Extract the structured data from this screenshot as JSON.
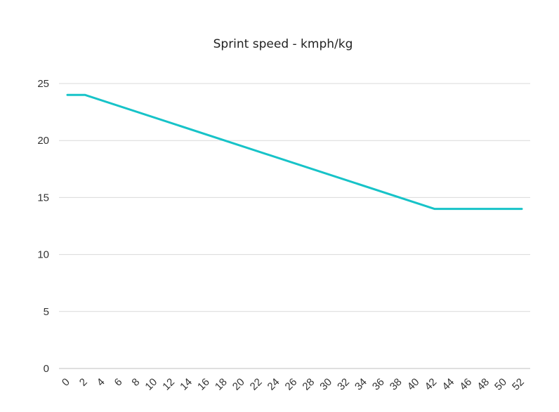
{
  "chart_data": {
    "type": "line",
    "title": "Sprint speed - kmph/kg",
    "xlabel": "",
    "ylabel": "",
    "x": [
      0,
      1,
      2,
      3,
      4,
      5,
      6,
      7,
      8,
      9,
      10,
      11,
      12,
      13,
      14,
      15,
      16,
      17,
      18,
      19,
      20,
      21,
      22,
      23,
      24,
      25,
      26,
      27,
      28,
      29,
      30,
      31,
      32,
      33,
      34,
      35,
      36,
      37,
      38,
      39,
      40,
      41,
      42,
      43,
      44,
      45,
      46,
      47,
      48,
      49,
      50,
      51,
      52
    ],
    "x_tick_labels": [
      "0",
      "2",
      "4",
      "6",
      "8",
      "10",
      "12",
      "14",
      "16",
      "18",
      "20",
      "22",
      "24",
      "26",
      "28",
      "30",
      "32",
      "34",
      "36",
      "38",
      "40",
      "42",
      "44",
      "46",
      "48",
      "50",
      "52"
    ],
    "y_ticks": [
      0,
      5,
      10,
      15,
      20,
      25
    ],
    "ylim": [
      0,
      25
    ],
    "xlim": [
      0,
      52
    ],
    "grid": true,
    "legend": "none",
    "series": [
      {
        "color": "#17c3c8",
        "points": [
          [
            0,
            24
          ],
          [
            2,
            24
          ],
          [
            42,
            14
          ],
          [
            52,
            14
          ]
        ]
      }
    ]
  }
}
